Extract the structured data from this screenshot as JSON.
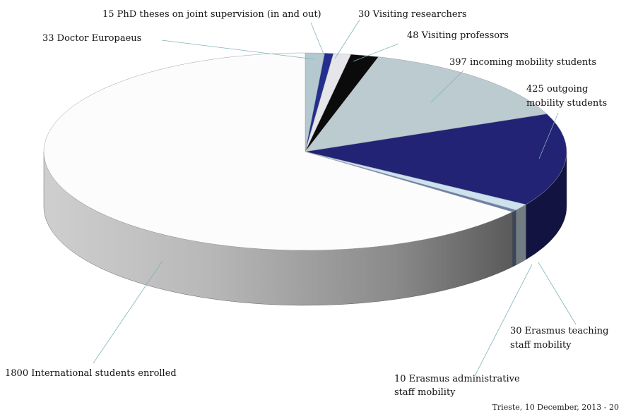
{
  "chart_data": {
    "type": "pie",
    "style": "3d",
    "title": "",
    "slices": [
      {
        "label": "33 Doctor Europaeus",
        "value": 33,
        "color": "#b4c8cf"
      },
      {
        "label": "15 PhD theses on joint supervision (in and out)",
        "value": 15,
        "color": "#242e8c"
      },
      {
        "label": "30 Visiting researchers",
        "value": 30,
        "color": "#e6e6ea"
      },
      {
        "label": "48 Visiting professors",
        "value": 48,
        "color": "#0b0b0b"
      },
      {
        "label": "397 incoming mobility students",
        "value": 397,
        "color": "#bccbcf"
      },
      {
        "label": "425 outgoing mobility students",
        "value": 425,
        "color": "#232376"
      },
      {
        "label": "30 Erasmus teaching staff mobility",
        "value": 30,
        "color": "#cde1ee"
      },
      {
        "label": "10 Erasmus administrative staff mobility",
        "value": 10,
        "color": "#6f7fa4"
      },
      {
        "label": "1800 International students  enrolled",
        "value": 1800,
        "color": "#fcfcfc"
      }
    ]
  },
  "footer": "Trieste,  10 December, 2013 -  20"
}
